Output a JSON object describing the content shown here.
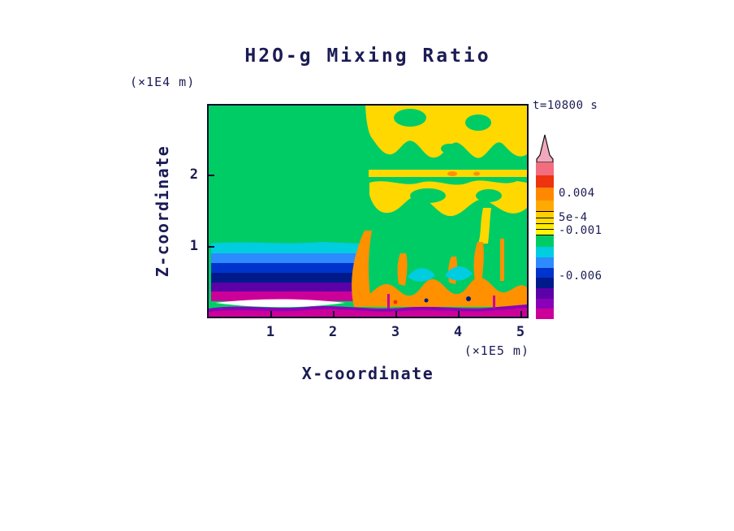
{
  "page": {
    "background": "#ffffff",
    "text_color": "#1b1b55"
  },
  "chart_data": {
    "type": "heatmap",
    "title": "H2O-g Mixing Ratio",
    "time_annotation": "t=10800 s",
    "xlabel": "X-coordinate",
    "ylabel": "Z-coordinate",
    "x_unit_label": "(×1E5 m)",
    "z_unit_label": "(×1E4 m)",
    "x_ticks": [
      "1",
      "2",
      "3",
      "4",
      "5"
    ],
    "z_ticks": [
      "2",
      "1"
    ],
    "xlim": [
      0,
      5.1
    ],
    "zlim": [
      0,
      3.0
    ],
    "grid": false,
    "legend_position": "right-colorbar",
    "colorbar": {
      "position": "right",
      "orientation": "vertical",
      "arrow_color": "#f2a8bc",
      "labels": [
        {
          "text": "0.004"
        },
        {
          "text": "5e-4"
        },
        {
          "text": "-0.001"
        },
        {
          "text": "-0.006"
        }
      ],
      "segments": [
        {
          "c": "#f26d7d",
          "h": 16
        },
        {
          "c": "#ee3311",
          "h": 16
        },
        {
          "c": "#ff8800",
          "h": 16
        },
        {
          "c": "#ffaa00",
          "h": 14
        },
        {
          "c": "#ffd000",
          "h": 7,
          "line": true
        },
        {
          "c": "#ffdd00",
          "h": 6,
          "line": true
        },
        {
          "c": "#ffea00",
          "h": 6,
          "line": true
        },
        {
          "c": "#fff600",
          "h": 6,
          "line": true
        },
        {
          "c": "#00cc66",
          "h": 15,
          "line": true
        },
        {
          "c": "#00cde0",
          "h": 13
        },
        {
          "c": "#2e8bff",
          "h": 13
        },
        {
          "c": "#0033cc",
          "h": 13
        },
        {
          "c": "#001a8c",
          "h": 13
        },
        {
          "c": "#5c00a8",
          "h": 13
        },
        {
          "c": "#8a00b8",
          "h": 13
        },
        {
          "c": "#cc0099",
          "h": 13
        }
      ]
    },
    "palette": {
      "background_green": "#00cc66",
      "yellow": "#ffd800",
      "orange": "#ff9000",
      "orange_red": "#ee3311",
      "rose": "#f26d7d",
      "cyan": "#00cde0",
      "light_blue": "#2e8bff",
      "blue": "#0033cc",
      "navy": "#001a8c",
      "purple": "#5c00a8",
      "violet": "#8a00b8",
      "magenta": "#cc0099",
      "white_core": "#ffffff"
    },
    "features": [
      "Uniform green background (near-zero anomaly) over most of the domain",
      "Stratified cold pool from x=0 to x≈2.45 (×1E5 m) below z≈1 (×1E4 m): cyan, light blue, blue, navy, purple and magenta layers with a white core near the surface",
      "Patchy yellow regions (≈5e-4) across the upper right quadrant for x>2.5, including a thin horizontal yellow streak near z≈2",
      "Orange plumes (up to ≈0.004) near the surface for x>2.4 with small cyan pockets embedded around z≈0.5",
      "Thin magenta/purple band (≈-0.006) along the entire bottom boundary"
    ]
  }
}
